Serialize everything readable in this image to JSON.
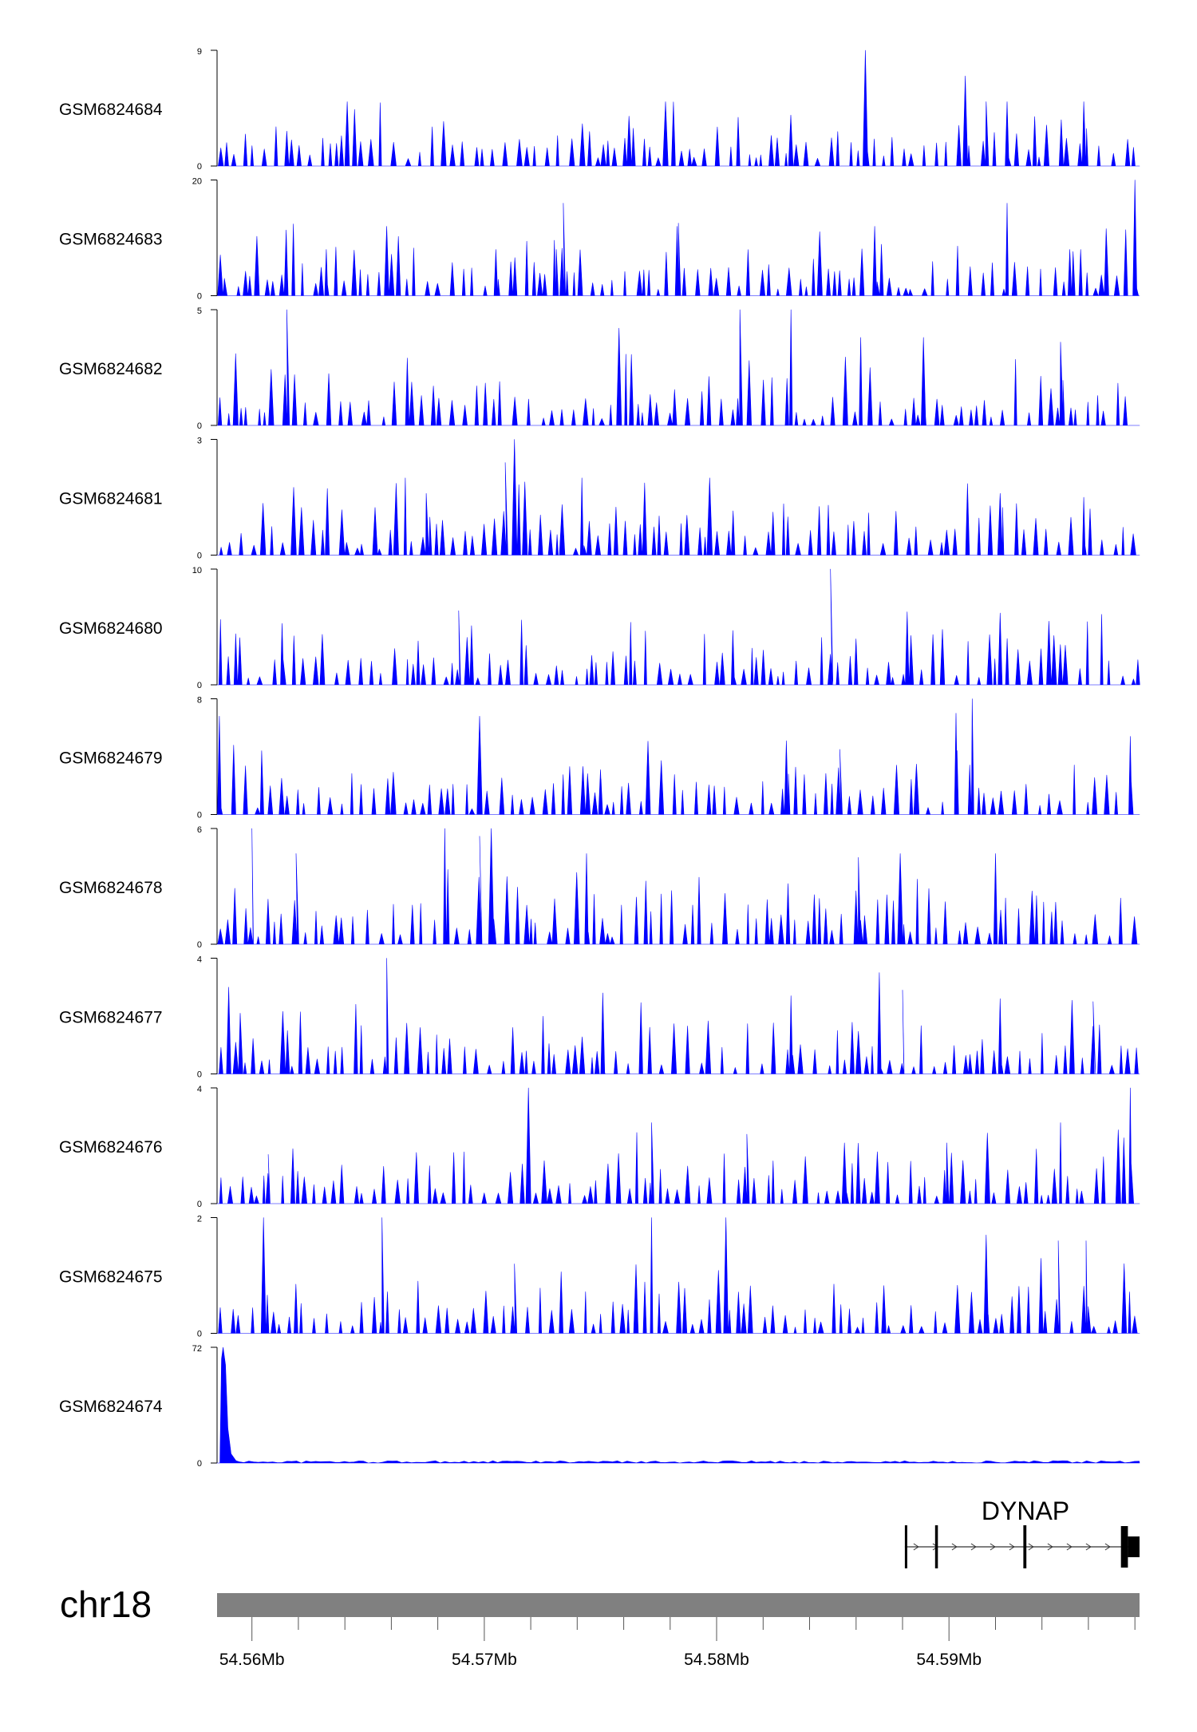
{
  "chart_data": {
    "type": "area",
    "region": {
      "chrom": "chr18",
      "start": 54558500,
      "end": 54598200
    },
    "x_tick_labels": [
      {
        "pos": 54560000,
        "label": "54.56Mb"
      },
      {
        "pos": 54570000,
        "label": "54.57Mb"
      },
      {
        "pos": 54580000,
        "label": "54.58Mb"
      },
      {
        "pos": 54590000,
        "label": "54.59Mb"
      }
    ],
    "fill_color": "#0000ff",
    "tracks": [
      {
        "name": "GSM6824684",
        "ymin": "0",
        "ymax": "9",
        "max": 9,
        "peaks": [
          [
            54586400,
            9
          ],
          [
            54590700,
            7
          ],
          [
            54592500,
            5
          ],
          [
            54591600,
            5
          ],
          [
            54595800,
            5
          ],
          [
            54564100,
            5
          ],
          [
            54577800,
            5
          ]
        ]
      },
      {
        "name": "GSM6824683",
        "ymin": "0",
        "ymax": "20",
        "max": 20,
        "peaks": [
          [
            54598000,
            20
          ],
          [
            54592500,
            16
          ],
          [
            54573400,
            16
          ],
          [
            54565800,
            12
          ],
          [
            54578300,
            12
          ],
          [
            54586800,
            12
          ],
          [
            54563200,
            8
          ],
          [
            54573100,
            8
          ],
          [
            54595200,
            8
          ],
          [
            54570500,
            8
          ]
        ]
      },
      {
        "name": "GSM6824682",
        "ymin": "0",
        "ymax": "5",
        "max": 5,
        "peaks": [
          [
            54561500,
            5
          ],
          [
            54581000,
            5
          ],
          [
            54583200,
            5
          ],
          [
            54575800,
            4.2
          ],
          [
            54586200,
            3.8
          ],
          [
            54588900,
            3.8
          ],
          [
            54594800,
            3.6
          ],
          [
            54559300,
            3.1
          ]
        ]
      },
      {
        "name": "GSM6824681",
        "ymin": "0",
        "ymax": "3",
        "max": 3,
        "peaks": [
          [
            54571300,
            3
          ],
          [
            54570900,
            2.4
          ],
          [
            54566600,
            2
          ],
          [
            54579700,
            2
          ],
          [
            54574200,
            2
          ],
          [
            54567500,
            1.6
          ],
          [
            54592200,
            1.6
          ],
          [
            54595800,
            1.5
          ]
        ]
      },
      {
        "name": "GSM6824680",
        "ymin": "0",
        "ymax": "10",
        "max": 10,
        "peaks": [
          [
            54584900,
            10
          ],
          [
            54568900,
            6.4
          ],
          [
            54561300,
            5.3
          ],
          [
            54588200,
            6.3
          ],
          [
            54592200,
            6.2
          ],
          [
            54594300,
            5.5
          ],
          [
            54576300,
            5.4
          ],
          [
            54580700,
            4.7
          ]
        ]
      },
      {
        "name": "GSM6824679",
        "ymin": "0",
        "ymax": "8",
        "max": 8,
        "peaks": [
          [
            54591000,
            8
          ],
          [
            54590300,
            7
          ],
          [
            54558600,
            6.8
          ],
          [
            54569800,
            6.8
          ],
          [
            54583000,
            5.1
          ],
          [
            54597800,
            5.4
          ],
          [
            54585300,
            4.5
          ],
          [
            54575000,
            3.1
          ]
        ]
      },
      {
        "name": "GSM6824678",
        "ymin": "0",
        "ymax": "6",
        "max": 6,
        "peaks": [
          [
            54570300,
            6
          ],
          [
            54560000,
            6
          ],
          [
            54568300,
            6
          ],
          [
            54569800,
            5.6
          ],
          [
            54561900,
            4.7
          ],
          [
            54574400,
            4.7
          ],
          [
            54587900,
            4.7
          ],
          [
            54592000,
            4.7
          ],
          [
            54586100,
            4.5
          ]
        ]
      },
      {
        "name": "GSM6824677",
        "ymin": "0",
        "ymax": "4",
        "max": 4,
        "peaks": [
          [
            54565800,
            4
          ],
          [
            54587000,
            3.5
          ],
          [
            54588000,
            2.9
          ],
          [
            54592200,
            2.6
          ],
          [
            54575100,
            2.8
          ],
          [
            54583200,
            2.7
          ],
          [
            54559000,
            3
          ],
          [
            54596200,
            2.5
          ]
        ]
      },
      {
        "name": "GSM6824676",
        "ymin": "0",
        "ymax": "4",
        "max": 4,
        "peaks": [
          [
            54571900,
            4
          ],
          [
            54597800,
            4
          ],
          [
            54577200,
            2.8
          ],
          [
            54581300,
            2.4
          ],
          [
            54594800,
            2.8
          ],
          [
            54585500,
            2.1
          ],
          [
            54589900,
            2.1
          ],
          [
            54560700,
            1.7
          ]
        ]
      },
      {
        "name": "GSM6824675",
        "ymin": "0",
        "ymax": "2",
        "max": 2,
        "peaks": [
          [
            54560500,
            2
          ],
          [
            54565600,
            2
          ],
          [
            54577200,
            2
          ],
          [
            54580400,
            2
          ],
          [
            54595900,
            1.6
          ],
          [
            54594700,
            1.6
          ],
          [
            54571300,
            1.2
          ],
          [
            54591600,
            1.7
          ]
        ]
      },
      {
        "name": "GSM6824674",
        "ymin": "0",
        "ymax": "72",
        "max": 72,
        "peaks": [
          [
            54558760,
            72
          ]
        ]
      }
    ]
  },
  "gene_track": {
    "gene_name": "DYNAP",
    "strand": "+",
    "tx_start": 54588100,
    "tx_end": 54598200,
    "exons": [
      [
        54588100,
        54588150
      ],
      [
        54589400,
        54589520
      ],
      [
        54593200,
        54593330
      ],
      [
        54597400,
        54597700
      ],
      [
        54597700,
        54598200
      ]
    ]
  },
  "ideogram": {
    "chrom_label": "chr18",
    "color": "#808080"
  }
}
